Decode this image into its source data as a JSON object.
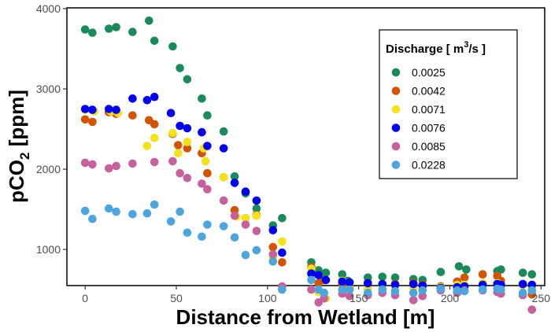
{
  "chart_data": {
    "type": "scatter",
    "title": "",
    "xlabel": "Distance from Wetland [m]",
    "ylabel_main": "pCO",
    "ylabel_sub": "2",
    "ylabel_tail": " [ppm]",
    "xlim": [
      -10,
      252
    ],
    "ylim": [
      550,
      4010
    ],
    "x_ticks": [
      0,
      50,
      100,
      150,
      200,
      250
    ],
    "y_ticks": [
      1000,
      2000,
      3000,
      4000
    ],
    "x_tick_labels": [
      "0",
      "50",
      "100",
      "150",
      "200",
      "250"
    ],
    "y_tick_labels": [
      "1000",
      "2000",
      "3000",
      "4000"
    ],
    "grid": false,
    "legend": {
      "title_main": "Discharge [ m",
      "title_sup": "3",
      "title_tail": "/s ]",
      "placement": "top-right"
    },
    "series": [
      {
        "name": "0.0025",
        "color": "#1b8a5a",
        "points": [
          [
            0,
            3740
          ],
          [
            4,
            3700
          ],
          [
            13,
            3750
          ],
          [
            17,
            3770
          ],
          [
            26,
            3710
          ],
          [
            35,
            3850
          ],
          [
            38,
            3600
          ],
          [
            48,
            3530
          ],
          [
            52,
            3260
          ],
          [
            56,
            3120
          ],
          [
            64,
            2880
          ],
          [
            67,
            2670
          ],
          [
            76,
            2470
          ],
          [
            82,
            1910
          ],
          [
            88,
            1700
          ],
          [
            94,
            1510
          ],
          [
            103,
            1300
          ],
          [
            108,
            1390
          ],
          [
            124,
            840
          ],
          [
            128,
            740
          ],
          [
            132,
            710
          ],
          [
            141,
            690
          ],
          [
            144,
            610
          ],
          [
            155,
            650
          ],
          [
            163,
            660
          ],
          [
            170,
            650
          ],
          [
            180,
            630
          ],
          [
            185,
            620
          ],
          [
            195,
            720
          ],
          [
            205,
            790
          ],
          [
            209,
            750
          ],
          [
            218,
            690
          ],
          [
            226,
            730
          ],
          [
            228,
            750
          ],
          [
            240,
            710
          ],
          [
            245,
            690
          ]
        ]
      },
      {
        "name": "0.0042",
        "color": "#d35400",
        "points": [
          [
            0,
            2620
          ],
          [
            4,
            2590
          ],
          [
            13,
            2710
          ],
          [
            17,
            2690
          ],
          [
            26,
            2670
          ],
          [
            35,
            2610
          ],
          [
            38,
            2560
          ],
          [
            48,
            2440
          ],
          [
            51,
            2300
          ],
          [
            56,
            2260
          ],
          [
            64,
            2200
          ],
          [
            67,
            1950
          ],
          [
            76,
            1900
          ],
          [
            82,
            1490
          ],
          [
            88,
            1390
          ],
          [
            94,
            1430
          ],
          [
            103,
            1030
          ],
          [
            108,
            840
          ],
          [
            124,
            780
          ],
          [
            128,
            580
          ],
          [
            131,
            620
          ],
          [
            141,
            570
          ],
          [
            145,
            530
          ],
          [
            155,
            580
          ],
          [
            163,
            560
          ],
          [
            170,
            570
          ],
          [
            180,
            580
          ],
          [
            185,
            560
          ],
          [
            195,
            540
          ],
          [
            204,
            600
          ],
          [
            208,
            650
          ],
          [
            218,
            690
          ],
          [
            226,
            670
          ],
          [
            228,
            610
          ],
          [
            240,
            560
          ],
          [
            245,
            440
          ]
        ]
      },
      {
        "name": "0.0071",
        "color": "#f5e11a",
        "points": [
          [
            0,
            2740
          ],
          [
            5,
            2720
          ],
          [
            14,
            2720
          ],
          [
            18,
            2700
          ],
          [
            34,
            2290
          ],
          [
            38,
            2390
          ],
          [
            48,
            2450
          ],
          [
            51,
            2200
          ],
          [
            56,
            2340
          ],
          [
            65,
            2260
          ],
          [
            66,
            2100
          ],
          [
            76,
            1900
          ],
          [
            83,
            1410
          ],
          [
            88,
            1390
          ],
          [
            94,
            1420
          ],
          [
            103,
            900
          ],
          [
            108,
            1100
          ],
          [
            124,
            760
          ],
          [
            128,
            470
          ],
          [
            132,
            390
          ],
          [
            141,
            610
          ],
          [
            145,
            510
          ],
          [
            155,
            510
          ],
          [
            163,
            530
          ],
          [
            170,
            500
          ],
          [
            180,
            520
          ],
          [
            185,
            510
          ],
          [
            195,
            530
          ],
          [
            204,
            560
          ],
          [
            208,
            560
          ],
          [
            218,
            580
          ],
          [
            226,
            580
          ],
          [
            228,
            560
          ],
          [
            240,
            560
          ],
          [
            245,
            530
          ]
        ]
      },
      {
        "name": "0.0076",
        "color": "#0000ee",
        "points": [
          [
            0,
            2750
          ],
          [
            4,
            2740
          ],
          [
            13,
            2750
          ],
          [
            17,
            2740
          ],
          [
            26,
            2880
          ],
          [
            34,
            2860
          ],
          [
            38,
            2900
          ],
          [
            47,
            2700
          ],
          [
            52,
            2540
          ],
          [
            56,
            2510
          ],
          [
            64,
            2460
          ],
          [
            67,
            2290
          ],
          [
            76,
            2260
          ],
          [
            82,
            1830
          ],
          [
            88,
            1720
          ],
          [
            94,
            1610
          ],
          [
            103,
            1240
          ],
          [
            108,
            960
          ],
          [
            124,
            700
          ],
          [
            128,
            680
          ],
          [
            132,
            620
          ],
          [
            141,
            600
          ],
          [
            145,
            590
          ],
          [
            155,
            580
          ],
          [
            163,
            570
          ],
          [
            170,
            560
          ],
          [
            180,
            570
          ],
          [
            185,
            550
          ],
          [
            195,
            520
          ],
          [
            204,
            530
          ],
          [
            208,
            540
          ],
          [
            218,
            560
          ],
          [
            226,
            570
          ],
          [
            228,
            560
          ],
          [
            240,
            570
          ],
          [
            245,
            560
          ]
        ]
      },
      {
        "name": "0.0085",
        "color": "#c6619e",
        "points": [
          [
            0,
            2080
          ],
          [
            4,
            2060
          ],
          [
            13,
            2010
          ],
          [
            17,
            2040
          ],
          [
            26,
            2070
          ],
          [
            38,
            2090
          ],
          [
            48,
            2100
          ],
          [
            52,
            1950
          ],
          [
            56,
            1890
          ],
          [
            64,
            1820
          ],
          [
            67,
            1750
          ],
          [
            76,
            1610
          ],
          [
            82,
            1420
          ],
          [
            88,
            1310
          ],
          [
            94,
            1230
          ],
          [
            103,
            940
          ],
          [
            108,
            540
          ],
          [
            124,
            500
          ],
          [
            128,
            340
          ],
          [
            131,
            390
          ],
          [
            141,
            450
          ],
          [
            145,
            420
          ],
          [
            155,
            430
          ],
          [
            163,
            460
          ],
          [
            170,
            430
          ],
          [
            180,
            370
          ],
          [
            185,
            420
          ],
          [
            195,
            490
          ],
          [
            204,
            460
          ],
          [
            208,
            490
          ],
          [
            218,
            490
          ],
          [
            226,
            470
          ],
          [
            228,
            450
          ],
          [
            240,
            430
          ],
          [
            245,
            250
          ]
        ]
      },
      {
        "name": "0.0228",
        "color": "#4ea5de",
        "points": [
          [
            0,
            1480
          ],
          [
            4,
            1380
          ],
          [
            13,
            1510
          ],
          [
            17,
            1470
          ],
          [
            26,
            1440
          ],
          [
            34,
            1450
          ],
          [
            38,
            1560
          ],
          [
            47,
            1350
          ],
          [
            52,
            1470
          ],
          [
            56,
            1210
          ],
          [
            64,
            1160
          ],
          [
            67,
            1310
          ],
          [
            76,
            1290
          ],
          [
            82,
            1150
          ],
          [
            88,
            930
          ],
          [
            94,
            990
          ],
          [
            103,
            850
          ],
          [
            108,
            500
          ],
          [
            124,
            620
          ],
          [
            128,
            500
          ],
          [
            131,
            460
          ],
          [
            141,
            500
          ],
          [
            145,
            500
          ],
          [
            155,
            460
          ],
          [
            163,
            500
          ],
          [
            170,
            480
          ],
          [
            180,
            460
          ],
          [
            185,
            490
          ],
          [
            195,
            510
          ],
          [
            204,
            490
          ],
          [
            208,
            480
          ],
          [
            218,
            500
          ],
          [
            226,
            510
          ],
          [
            228,
            500
          ],
          [
            240,
            460
          ],
          [
            245,
            490
          ]
        ]
      }
    ]
  }
}
